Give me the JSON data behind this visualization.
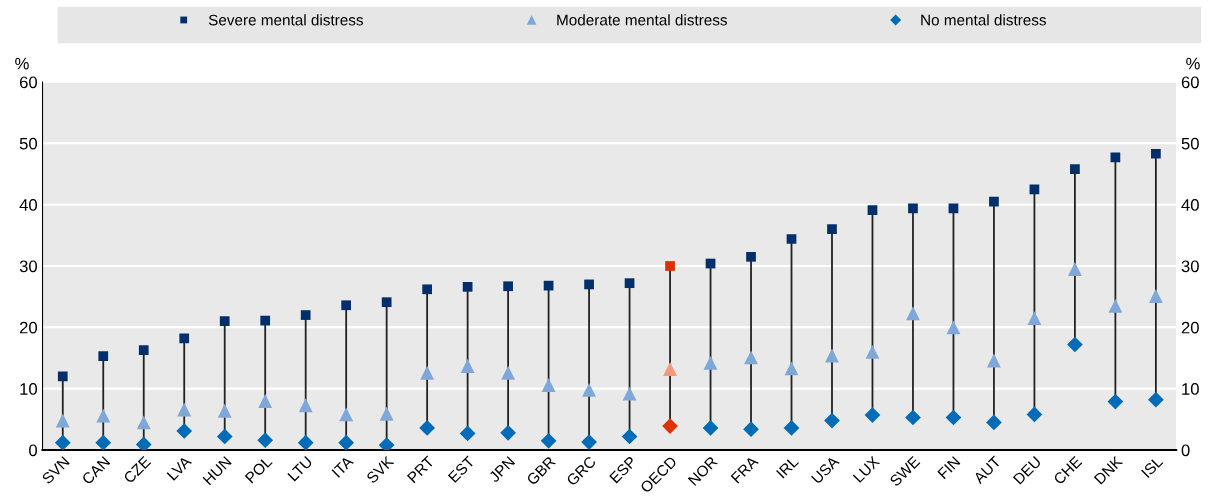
{
  "chart_data": {
    "type": "scatter",
    "categories": [
      "SVN",
      "CAN",
      "CZE",
      "LVA",
      "HUN",
      "POL",
      "LTU",
      "ITA",
      "SVK",
      "PRT",
      "EST",
      "JPN",
      "GBR",
      "GRC",
      "ESP",
      "OECD",
      "NOR",
      "FRA",
      "IRL",
      "USA",
      "LUX",
      "SWE",
      "FIN",
      "AUT",
      "DEU",
      "CHE",
      "DNK",
      "ISL"
    ],
    "series": [
      {
        "name": "Severe mental distress",
        "color": "#002f6c",
        "marker": "square",
        "colors": [
          "#002f6c",
          "#002f6c",
          "#002f6c",
          "#002f6c",
          "#002f6c",
          "#002f6c",
          "#002f6c",
          "#002f6c",
          "#002f6c",
          "#002f6c",
          "#002f6c",
          "#002f6c",
          "#002f6c",
          "#002f6c",
          "#002f6c",
          "#dc2f02",
          "#002f6c",
          "#002f6c",
          "#002f6c",
          "#002f6c",
          "#002f6c",
          "#002f6c",
          "#002f6c",
          "#002f6c",
          "#002f6c",
          "#002f6c",
          "#002f6c",
          "#002f6c"
        ],
        "values": [
          12,
          15.3,
          16.3,
          18.2,
          21,
          21.1,
          22,
          23.6,
          24.1,
          26.2,
          26.6,
          26.7,
          26.8,
          27,
          27.2,
          30,
          30.4,
          31.5,
          34.4,
          36,
          39.1,
          39.4,
          39.4,
          40.5,
          42.5,
          45.8,
          47.7,
          48.3
        ]
      },
      {
        "name": "Moderate mental distress",
        "color": "#7fa8d9",
        "marker": "triangle",
        "colors": [
          "#7fa8d9",
          "#7fa8d9",
          "#7fa8d9",
          "#7fa8d9",
          "#7fa8d9",
          "#7fa8d9",
          "#7fa8d9",
          "#7fa8d9",
          "#7fa8d9",
          "#7fa8d9",
          "#7fa8d9",
          "#7fa8d9",
          "#7fa8d9",
          "#7fa8d9",
          "#7fa8d9",
          "#f4977c",
          "#7fa8d9",
          "#7fa8d9",
          "#7fa8d9",
          "#7fa8d9",
          "#7fa8d9",
          "#7fa8d9",
          "#7fa8d9",
          "#7fa8d9",
          "#7fa8d9",
          "#7fa8d9",
          "#7fa8d9",
          "#7fa8d9"
        ],
        "values": [
          4.8,
          5.6,
          4.5,
          6.6,
          6.4,
          8.0,
          7.3,
          5.8,
          5.9,
          12.6,
          13.7,
          12.6,
          10.6,
          9.8,
          9.2,
          13.2,
          14.2,
          15.1,
          13.3,
          15.4,
          16.0,
          22.3,
          20.0,
          14.6,
          21.5,
          29.5,
          23.5,
          25.1
        ]
      },
      {
        "name": "No mental distress",
        "color": "#006bb6",
        "marker": "diamond",
        "colors": [
          "#006bb6",
          "#006bb6",
          "#006bb6",
          "#006bb6",
          "#006bb6",
          "#006bb6",
          "#006bb6",
          "#006bb6",
          "#006bb6",
          "#006bb6",
          "#006bb6",
          "#006bb6",
          "#006bb6",
          "#006bb6",
          "#006bb6",
          "#dd3300",
          "#006bb6",
          "#006bb6",
          "#006bb6",
          "#006bb6",
          "#006bb6",
          "#006bb6",
          "#006bb6",
          "#006bb6",
          "#006bb6",
          "#006bb6",
          "#006bb6",
          "#006bb6"
        ],
        "values": [
          1.2,
          1.2,
          0.9,
          3.1,
          2.2,
          1.6,
          1.2,
          1.2,
          0.8,
          3.6,
          2.7,
          2.8,
          1.5,
          1.3,
          2.2,
          3.9,
          3.6,
          3.4,
          3.6,
          4.8,
          5.7,
          5.3,
          5.3,
          4.5,
          5.8,
          17.2,
          7.9,
          8.2
        ]
      }
    ],
    "ylabel": "%",
    "y2label": "%",
    "ylim": [
      0,
      60
    ],
    "yticks": [
      0,
      10,
      20,
      30,
      40,
      50,
      60
    ],
    "y2lim": [
      0,
      60
    ],
    "y2ticks": [
      0,
      10,
      20,
      30,
      40,
      50,
      60
    ],
    "grid": true,
    "legend": "top"
  }
}
